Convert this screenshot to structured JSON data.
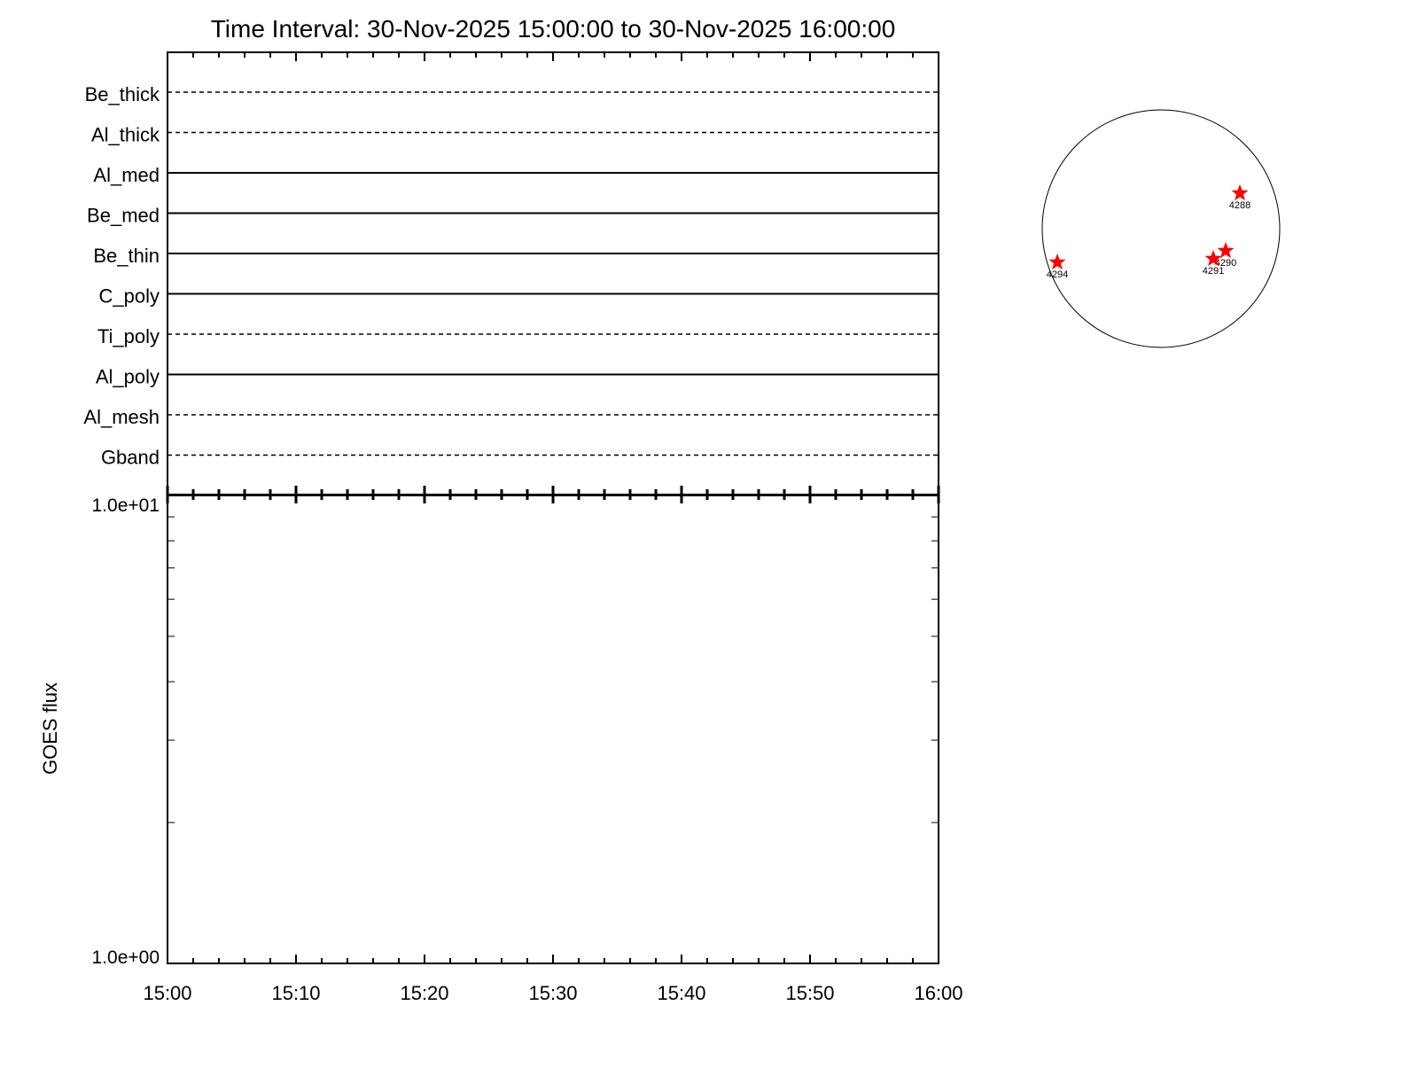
{
  "chart_data": [
    {
      "type": "table",
      "title": "Time Interval: 30-Nov-2025 15:00:00 to 30-Nov-2025 16:00:00",
      "rows": [
        {
          "label": "Be_thick",
          "style": "dashed"
        },
        {
          "label": "Al_thick",
          "style": "dashed"
        },
        {
          "label": "Al_med",
          "style": "solid"
        },
        {
          "label": "Be_med",
          "style": "solid"
        },
        {
          "label": "Be_thin",
          "style": "solid"
        },
        {
          "label": "C_poly",
          "style": "solid"
        },
        {
          "label": "Ti_poly",
          "style": "dashed"
        },
        {
          "label": "Al_poly",
          "style": "solid"
        },
        {
          "label": "Al_mesh",
          "style": "dashed"
        },
        {
          "label": "Gband",
          "style": "dashed"
        }
      ]
    },
    {
      "type": "line",
      "ylabel": "GOES flux",
      "yscale": "log",
      "ylim": [
        1,
        10
      ],
      "ytick_labels": [
        "1.0e+01",
        "1.0e+00"
      ],
      "xlim": [
        "15:00",
        "16:00"
      ],
      "xtick_labels": [
        "15:00",
        "15:10",
        "15:20",
        "15:30",
        "15:40",
        "15:50",
        "16:00"
      ],
      "series": []
    },
    {
      "type": "scatter",
      "description_kind": "solar disk active regions",
      "marker_color": "#ff0000",
      "points": [
        {
          "label": "4288"
        },
        {
          "label": "4290"
        },
        {
          "label": "4291"
        },
        {
          "label": "4294"
        }
      ]
    }
  ]
}
